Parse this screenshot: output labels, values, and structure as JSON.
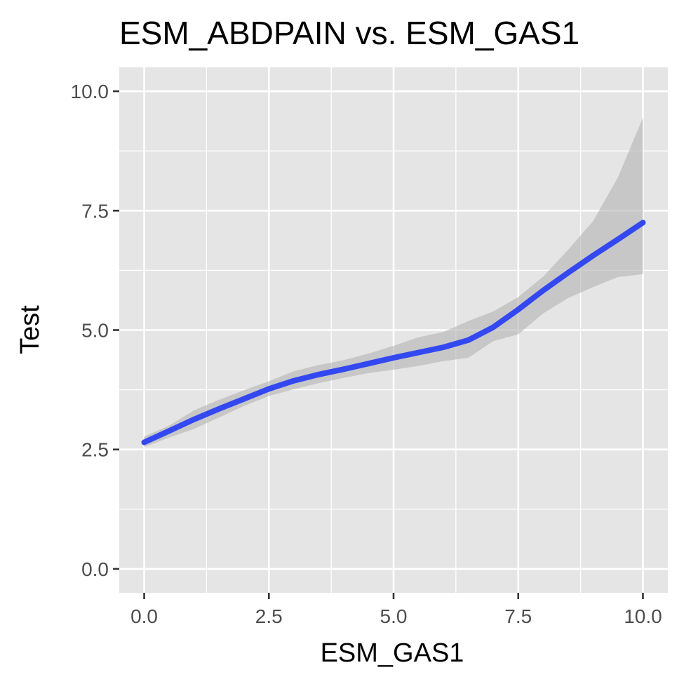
{
  "chart_data": {
    "type": "line",
    "title": "ESM_ABDPAIN vs. ESM_GAS1",
    "xlabel": "ESM_GAS1",
    "ylabel": "Test",
    "xlim": [
      -0.5,
      10.5
    ],
    "ylim": [
      -0.5,
      10.5
    ],
    "xticks": [
      0.0,
      2.5,
      5.0,
      7.5,
      10.0
    ],
    "xtick_labels": [
      "0.0",
      "2.5",
      "5.0",
      "7.5",
      "10.0"
    ],
    "yticks": [
      0.0,
      2.5,
      5.0,
      7.5,
      10.0
    ],
    "ytick_labels": [
      "0.0",
      "2.5",
      "5.0",
      "7.5",
      "10.0"
    ],
    "grid": true,
    "background_color": "#e5e5e5",
    "grid_color": "#ffffff",
    "series": [
      {
        "x": [
          0.0,
          0.5,
          1.0,
          1.5,
          2.0,
          2.5,
          3.0,
          3.5,
          4.0,
          4.5,
          5.0,
          5.5,
          6.0,
          6.5,
          7.0,
          7.5,
          8.0,
          8.5,
          9.0,
          9.5,
          10.0
        ],
        "y": [
          2.65,
          2.89,
          3.13,
          3.35,
          3.56,
          3.77,
          3.94,
          4.07,
          4.18,
          4.3,
          4.42,
          4.53,
          4.64,
          4.79,
          5.06,
          5.43,
          5.83,
          6.2,
          6.56,
          6.9,
          7.25
        ],
        "y_lower": [
          2.55,
          2.75,
          2.93,
          3.17,
          3.41,
          3.62,
          3.76,
          3.89,
          4.0,
          4.1,
          4.17,
          4.25,
          4.35,
          4.42,
          4.77,
          4.91,
          5.35,
          5.67,
          5.9,
          6.11,
          6.17
        ],
        "y_upper": [
          2.77,
          3.0,
          3.32,
          3.54,
          3.74,
          3.93,
          4.14,
          4.27,
          4.37,
          4.51,
          4.67,
          4.85,
          4.96,
          5.19,
          5.39,
          5.69,
          6.12,
          6.68,
          7.28,
          8.2,
          9.45
        ],
        "color": "#3348f0",
        "ribbon_color": "#b3b3b3"
      }
    ]
  }
}
